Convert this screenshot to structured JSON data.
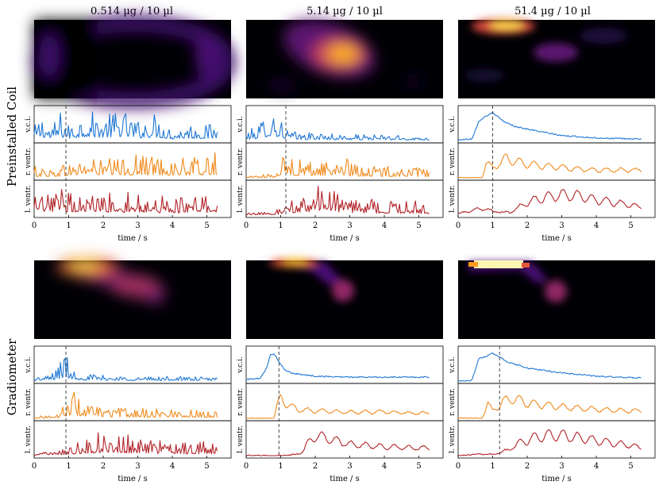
{
  "figure": {
    "column_titles": [
      "0.514 µg / 10 µl",
      "5.14 µg / 10 µl",
      "51.4 µg / 10 µl"
    ],
    "row_labels": [
      "Preinstalled Coil",
      "Gradiometer"
    ],
    "xlabel": "time / s",
    "trace_labels": [
      "v.c.i.",
      "r. ventr.",
      "l. ventr."
    ],
    "colors": {
      "vci": "#1f77d4",
      "rventr": "#ef8a1c",
      "lventr": "#b2242a",
      "heat_bg": "#000004"
    }
  },
  "chart_data": [
    {
      "type": "line",
      "row": "Preinstalled Coil",
      "column": "0.514 µg / 10 µl",
      "xlabel": "time / s",
      "xlim": [
        0,
        5.7
      ],
      "xticks": [
        0,
        1,
        2,
        3,
        4,
        5
      ],
      "marker_time": 0.92,
      "series": [
        {
          "name": "v.c.i.",
          "profile": "noise",
          "x": [
            0,
            0.25,
            0.5,
            0.75,
            1,
            1.5,
            2,
            2.5,
            3,
            3.5,
            4,
            4.5,
            5,
            5.3
          ],
          "values": [
            0.35,
            0.7,
            0.3,
            0.75,
            0.4,
            0.8,
            0.6,
            0.8,
            0.5,
            0.7,
            0.3,
            0.45,
            0.4,
            0.45
          ]
        },
        {
          "name": "r. ventr.",
          "profile": "noise",
          "x": [
            0,
            0.5,
            1,
            1.5,
            2,
            2.5,
            3,
            3.5,
            4,
            4.5,
            5,
            5.3
          ],
          "values": [
            0.3,
            0.25,
            0.4,
            0.6,
            0.5,
            0.5,
            0.6,
            0.6,
            0.5,
            0.5,
            0.55,
            0.7
          ]
        },
        {
          "name": "l. ventr.",
          "profile": "noise",
          "x": [
            0,
            0.5,
            1,
            1.5,
            2,
            2.5,
            3,
            3.5,
            4,
            4.5,
            5,
            5.3
          ],
          "values": [
            0.45,
            0.55,
            0.7,
            0.55,
            0.6,
            0.55,
            0.6,
            0.45,
            0.5,
            0.45,
            0.5,
            0.6
          ]
        }
      ]
    },
    {
      "type": "line",
      "row": "Preinstalled Coil",
      "column": "5.14 µg / 10 µl",
      "xlabel": "time / s",
      "xlim": [
        0,
        5.7
      ],
      "xticks": [
        0,
        1,
        2,
        3,
        4,
        5
      ],
      "marker_time": 1.15,
      "series": [
        {
          "name": "v.c.i.",
          "profile": "noise",
          "x": [
            0,
            0.4,
            0.6,
            0.8,
            1.0,
            1.2,
            1.5,
            2,
            3,
            4,
            5,
            5.3
          ],
          "values": [
            0.2,
            0.45,
            0.8,
            0.9,
            0.6,
            0.3,
            0.2,
            0.2,
            0.15,
            0.15,
            0.1,
            0.1
          ]
        },
        {
          "name": "r. ventr.",
          "profile": "noise",
          "x": [
            0,
            0.8,
            1.0,
            1.2,
            1.5,
            2,
            2.5,
            2.7,
            3,
            4,
            5,
            5.3
          ],
          "values": [
            0.05,
            0.1,
            0.55,
            0.65,
            0.45,
            0.45,
            0.5,
            0.8,
            0.35,
            0.3,
            0.25,
            0.2
          ]
        },
        {
          "name": "l. ventr.",
          "profile": "noise",
          "x": [
            0,
            0.8,
            1.2,
            1.6,
            2.0,
            2.3,
            2.6,
            3,
            3.5,
            4,
            5,
            5.3
          ],
          "values": [
            0.05,
            0.1,
            0.3,
            0.6,
            0.75,
            0.8,
            0.6,
            0.55,
            0.4,
            0.4,
            0.35,
            0.3
          ]
        }
      ]
    },
    {
      "type": "line",
      "row": "Preinstalled Coil",
      "column": "51.4 µg / 10 µl",
      "xlabel": "time / s",
      "xlim": [
        0,
        5.7
      ],
      "xticks": [
        0,
        1,
        2,
        3,
        4,
        5
      ],
      "marker_time": 1.0,
      "series": [
        {
          "name": "v.c.i.",
          "profile": "smooth",
          "x": [
            0,
            0.4,
            0.6,
            0.8,
            1.0,
            1.3,
            1.6,
            2,
            2.5,
            3,
            4,
            5,
            5.3
          ],
          "values": [
            0.02,
            0.05,
            0.6,
            0.75,
            0.85,
            0.6,
            0.45,
            0.35,
            0.25,
            0.15,
            0.08,
            0.05,
            0.05
          ]
        },
        {
          "name": "r. ventr.",
          "profile": "osc",
          "x": [
            0,
            0.7,
            0.8,
            1.0,
            1.2,
            1.4,
            1.8,
            2.2,
            3,
            4,
            5,
            5.3
          ],
          "values": [
            0.0,
            0.0,
            0.65,
            0.35,
            0.6,
            0.75,
            0.6,
            0.5,
            0.4,
            0.3,
            0.3,
            0.3
          ]
        },
        {
          "name": "l. ventr.",
          "profile": "osc",
          "x": [
            0,
            0.4,
            0.8,
            1.0,
            1.5,
            2.0,
            2.5,
            3,
            3.5,
            4,
            4.5,
            5,
            5.3
          ],
          "values": [
            0.05,
            0.2,
            0.25,
            0.15,
            0.1,
            0.5,
            0.7,
            0.8,
            0.75,
            0.6,
            0.5,
            0.4,
            0.3
          ]
        }
      ]
    },
    {
      "type": "line",
      "row": "Gradiometer",
      "column": "0.514 µg / 10 µl",
      "xlabel": "time / s",
      "xlim": [
        0,
        5.7
      ],
      "xticks": [
        0,
        1,
        2,
        3,
        4,
        5
      ],
      "marker_time": 0.92,
      "series": [
        {
          "name": "v.c.i.",
          "profile": "noise",
          "x": [
            0,
            0.4,
            0.6,
            0.8,
            0.9,
            1.0,
            1.2,
            1.5,
            2,
            3,
            4,
            5,
            5.3
          ],
          "values": [
            0.1,
            0.15,
            0.3,
            0.6,
            0.8,
            0.5,
            0.3,
            0.2,
            0.15,
            0.12,
            0.12,
            0.1,
            0.1
          ]
        },
        {
          "name": "r. ventr.",
          "profile": "noise",
          "x": [
            0,
            0.7,
            0.9,
            1.1,
            1.3,
            1.6,
            2,
            3,
            4,
            5,
            5.3
          ],
          "values": [
            0.05,
            0.1,
            0.4,
            0.8,
            0.5,
            0.35,
            0.3,
            0.25,
            0.25,
            0.2,
            0.2
          ]
        },
        {
          "name": "l. ventr.",
          "profile": "noise",
          "x": [
            0,
            0.8,
            1.2,
            1.8,
            2.2,
            2.5,
            3,
            3.5,
            4,
            5,
            5.3
          ],
          "values": [
            0.05,
            0.2,
            0.35,
            0.6,
            0.7,
            0.6,
            0.5,
            0.4,
            0.4,
            0.35,
            0.3
          ]
        }
      ]
    },
    {
      "type": "line",
      "row": "Gradiometer",
      "column": "5.14 µg / 10 µl",
      "xlabel": "time / s",
      "xlim": [
        0,
        5.7
      ],
      "xticks": [
        0,
        1,
        2,
        3,
        4,
        5
      ],
      "marker_time": 0.95,
      "series": [
        {
          "name": "v.c.i.",
          "profile": "smooth",
          "x": [
            0,
            0.4,
            0.6,
            0.7,
            0.8,
            0.95,
            1.1,
            1.3,
            1.6,
            2,
            3,
            4,
            5,
            5.3
          ],
          "values": [
            0.05,
            0.08,
            0.4,
            0.8,
            0.85,
            0.6,
            0.35,
            0.25,
            0.2,
            0.15,
            0.12,
            0.12,
            0.12,
            0.12
          ]
        },
        {
          "name": "r. ventr.",
          "profile": "osc",
          "x": [
            0,
            0.8,
            0.9,
            1.0,
            1.2,
            1.5,
            2,
            3,
            4,
            5,
            5.3
          ],
          "values": [
            0.0,
            0.0,
            0.5,
            0.8,
            0.55,
            0.35,
            0.3,
            0.25,
            0.25,
            0.2,
            0.2
          ]
        },
        {
          "name": "l. ventr.",
          "profile": "osc",
          "x": [
            0,
            1.2,
            1.6,
            1.8,
            2.0,
            2.3,
            2.7,
            3,
            4,
            5,
            5.3
          ],
          "values": [
            0.0,
            0.0,
            0.1,
            0.5,
            0.8,
            0.7,
            0.55,
            0.45,
            0.35,
            0.3,
            0.3
          ]
        }
      ]
    },
    {
      "type": "line",
      "row": "Gradiometer",
      "column": "51.4 µg / 10 µl",
      "xlabel": "time / s",
      "xlim": [
        0,
        5.7
      ],
      "xticks": [
        0,
        1,
        2,
        3,
        4,
        5
      ],
      "marker_time": 1.2,
      "series": [
        {
          "name": "v.c.i.",
          "profile": "smooth",
          "x": [
            0,
            0.4,
            0.6,
            0.8,
            1.0,
            1.2,
            1.4,
            1.7,
            2,
            3,
            4,
            5,
            5.3
          ],
          "values": [
            0.0,
            0.02,
            0.7,
            0.75,
            0.85,
            0.75,
            0.6,
            0.5,
            0.4,
            0.25,
            0.15,
            0.1,
            0.1
          ]
        },
        {
          "name": "r. ventr.",
          "profile": "osc",
          "x": [
            0,
            0.7,
            0.85,
            1.0,
            1.3,
            1.6,
            2,
            3,
            4,
            5,
            5.3
          ],
          "values": [
            0.0,
            0.0,
            0.6,
            0.3,
            0.65,
            0.8,
            0.6,
            0.45,
            0.35,
            0.3,
            0.3
          ]
        },
        {
          "name": "l. ventr.",
          "profile": "osc",
          "x": [
            0,
            0.5,
            1.0,
            1.4,
            1.8,
            2.2,
            2.6,
            3,
            3.5,
            4,
            5,
            5.3
          ],
          "values": [
            0.0,
            0.05,
            0.05,
            0.2,
            0.5,
            0.7,
            0.8,
            0.8,
            0.7,
            0.6,
            0.4,
            0.3
          ]
        }
      ]
    }
  ]
}
